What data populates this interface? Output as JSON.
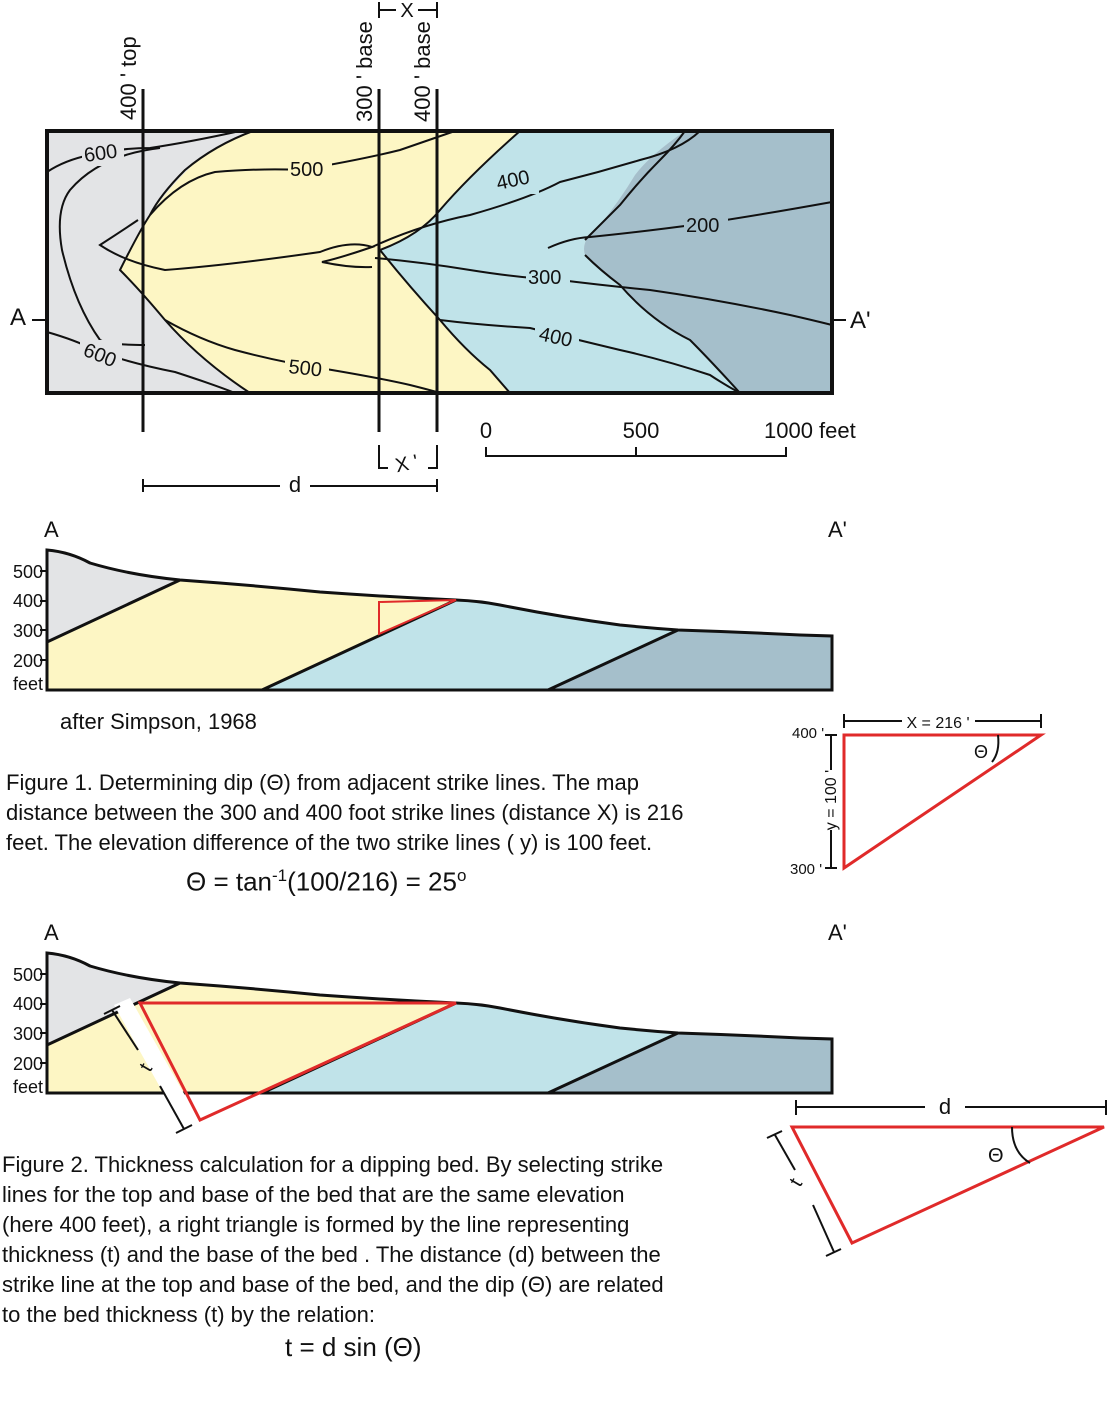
{
  "map": {
    "strike_labels": {
      "top400": "400 ' top",
      "base300": "300 ' base",
      "base400": "400 ' base"
    },
    "x_top": "X",
    "x_bottom": "X '",
    "d": "d",
    "end_a": "A",
    "end_a_prime": "A'",
    "contours": {
      "c600_upper": "600",
      "c600_lower": "600",
      "c500_upper": "500",
      "c500_lower": "500",
      "c400_upper": "400",
      "c400_lower": "400",
      "c300": "300",
      "c200": "200"
    },
    "scale": {
      "tick0": "0",
      "tick500": "500",
      "tick1000": "1000 feet"
    },
    "colors": {
      "gray": "#e3e4e6",
      "yellow": "#fdf6c4",
      "blue": "#c0e3e9",
      "dark_blue": "#a5bfcb"
    }
  },
  "section1": {
    "end_a": "A",
    "end_a_prime": "A'",
    "y_ticks": [
      "500",
      "400",
      "300",
      "200",
      "feet"
    ],
    "attribution": "after Simpson, 1968"
  },
  "triangle1": {
    "top_label": "X = 216 '",
    "side_label": "y = 100 '",
    "upper_elev": "400 '",
    "lower_elev": "300 '",
    "theta": "Θ"
  },
  "figure1": {
    "lines": [
      "Figure 1.  Determining dip (Θ) from adjacent strike lines.  The map",
      "distance between the 300 and 400 foot strike lines (distance X) is 216",
      "feet.  The elevation difference of the two strike lines ( y) is 100 feet."
    ],
    "formula_lhs": "Θ = tan",
    "formula_exp": "-1",
    "formula_rhs": "(100/216) = 25",
    "formula_deg": "o"
  },
  "section2": {
    "end_a": "A",
    "end_a_prime": "A'",
    "y_ticks": [
      "500",
      "400",
      "300",
      "200",
      "feet"
    ],
    "t": "t"
  },
  "triangle2": {
    "d": "d",
    "t": "t",
    "theta": "Θ"
  },
  "figure2": {
    "lines": [
      "Figure 2.  Thickness calculation for a dipping bed.   By selecting strike",
      "lines for the top and  base of the bed that are the same elevation",
      "(here 400 feet), a right triangle is formed by the line representing",
      "thickness (t) and the base of the bed .  The distance (d) between the",
      "strike line at the top and base of the bed, and the dip (Θ) are related",
      "to the bed thickness (t) by the relation:"
    ],
    "formula": "t = d sin (Θ)"
  }
}
